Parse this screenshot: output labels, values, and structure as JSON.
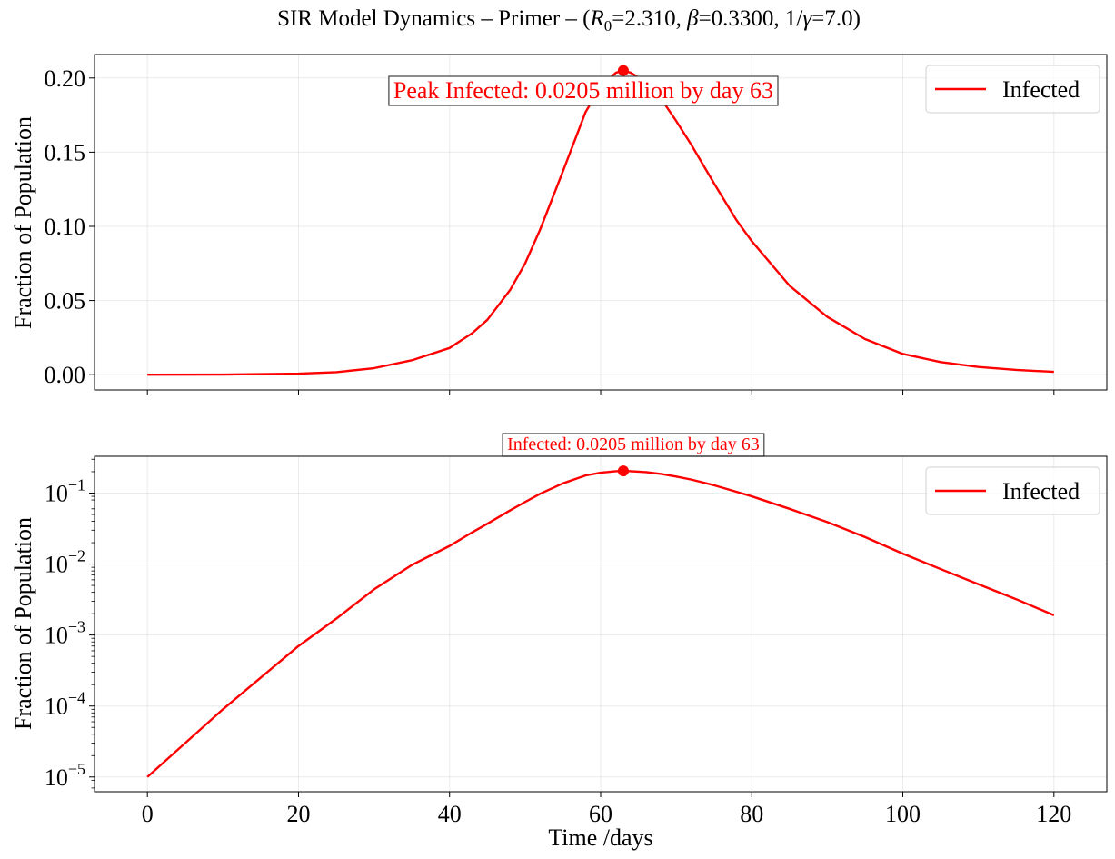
{
  "figure": {
    "title": "SIR Model Dynamics – Primer – (R0=2.310, β=0.3300, 1/γ=7.0)",
    "title_parts": {
      "prefix": "SIR Model Dynamics – Primer – (",
      "r": "R",
      "r_sub": "0",
      "r_val": "=2.310, ",
      "beta": "β",
      "beta_val": "=0.3300, 1/",
      "gamma": "γ",
      "gamma_val": "=7.0)"
    },
    "line_color": "#ff0000"
  },
  "chart_data": [
    {
      "type": "line",
      "name": "linear",
      "xlabel": "",
      "ylabel": "Fraction of Population",
      "yscale": "linear",
      "xlim": [
        -7,
        127
      ],
      "ylim": [
        -0.0103,
        0.2158
      ],
      "grid": true,
      "legend_position": "top-right",
      "x_ticks": [
        0,
        20,
        40,
        60,
        80,
        100,
        120
      ],
      "x_tick_labels_shown": false,
      "y_ticks": [
        0.0,
        0.05,
        0.1,
        0.15,
        0.2
      ],
      "y_tick_labels": [
        "0.00",
        "0.05",
        "0.10",
        "0.15",
        "0.20"
      ],
      "series": [
        {
          "name": "Infected",
          "color": "#ff0000",
          "x": [
            0,
            10,
            20,
            25,
            30,
            35,
            40,
            43,
            45,
            48,
            50,
            52,
            55,
            58,
            60,
            62,
            63,
            64,
            66,
            68,
            70,
            72,
            75,
            78,
            80,
            85,
            90,
            95,
            100,
            105,
            110,
            115,
            120
          ],
          "y": [
            1e-05,
            9e-05,
            0.0007,
            0.0017,
            0.0044,
            0.0097,
            0.018,
            0.028,
            0.037,
            0.057,
            0.075,
            0.098,
            0.137,
            0.177,
            0.194,
            0.2035,
            0.205,
            0.2035,
            0.197,
            0.186,
            0.171,
            0.155,
            0.129,
            0.104,
            0.09,
            0.06,
            0.039,
            0.024,
            0.014,
            0.0085,
            0.0052,
            0.0032,
            0.0019
          ]
        }
      ],
      "peak": {
        "x": 63,
        "y": 0.205
      },
      "annotation": "Peak Infected: 0.0205 million by day 63"
    },
    {
      "type": "line",
      "name": "log",
      "xlabel": "Time /days",
      "ylabel": "Fraction of Population",
      "yscale": "log",
      "xlim": [
        -7,
        127
      ],
      "ylim": [
        6.2e-06,
        0.33
      ],
      "grid": true,
      "legend_position": "top-right",
      "x_ticks": [
        0,
        20,
        40,
        60,
        80,
        100,
        120
      ],
      "x_tick_labels": [
        "0",
        "20",
        "40",
        "60",
        "80",
        "100",
        "120"
      ],
      "y_ticks": [
        1e-05,
        0.0001,
        0.001,
        0.01,
        0.1
      ],
      "y_tick_labels": [
        {
          "base": "10",
          "exp": "−5"
        },
        {
          "base": "10",
          "exp": "−4"
        },
        {
          "base": "10",
          "exp": "−3"
        },
        {
          "base": "10",
          "exp": "−2"
        },
        {
          "base": "10",
          "exp": "−1"
        }
      ],
      "series": [
        {
          "name": "Infected",
          "color": "#ff0000",
          "x": [
            0,
            10,
            20,
            25,
            30,
            35,
            40,
            43,
            45,
            48,
            50,
            52,
            55,
            58,
            60,
            62,
            63,
            64,
            66,
            68,
            70,
            72,
            75,
            78,
            80,
            85,
            90,
            95,
            100,
            105,
            110,
            115,
            120
          ],
          "y": [
            1e-05,
            9e-05,
            0.0007,
            0.0017,
            0.0044,
            0.0097,
            0.018,
            0.028,
            0.037,
            0.057,
            0.075,
            0.098,
            0.137,
            0.177,
            0.194,
            0.2035,
            0.205,
            0.2035,
            0.197,
            0.186,
            0.171,
            0.155,
            0.129,
            0.104,
            0.09,
            0.06,
            0.039,
            0.024,
            0.014,
            0.0085,
            0.0052,
            0.0032,
            0.0019
          ]
        }
      ],
      "peak": {
        "x": 63,
        "y": 0.205
      },
      "annotation": "Infected: 0.0205 million by day 63"
    }
  ]
}
